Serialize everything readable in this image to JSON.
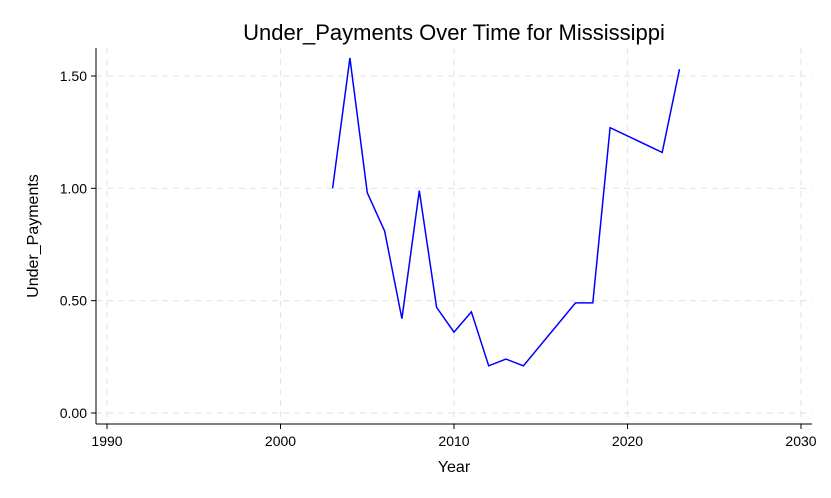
{
  "chart_data": {
    "type": "line",
    "title": "Under_Payments Over Time for Mississippi",
    "xlabel": "Year",
    "ylabel": "Under_Payments",
    "xlim": [
      1990,
      2030
    ],
    "ylim": [
      0,
      1.58
    ],
    "xticks": [
      1990,
      2000,
      2010,
      2020,
      2030
    ],
    "xtick_labels": [
      "1990",
      "2000",
      "2010",
      "2020",
      "2030"
    ],
    "yticks": [
      0,
      0.5,
      1.0,
      1.5
    ],
    "ytick_labels": [
      "0.00",
      "0.50",
      "1.00",
      "1.50"
    ],
    "grid": true,
    "color": "#0000ff",
    "series": [
      {
        "x": [
          2003,
          2004,
          2005,
          2006,
          2007,
          2008,
          2009,
          2010,
          2011,
          2012,
          2013,
          2014,
          2017,
          2018,
          2019,
          2022,
          2023
        ],
        "values": [
          1.0,
          1.58,
          0.98,
          0.81,
          0.42,
          0.99,
          0.47,
          0.36,
          0.45,
          0.21,
          0.24,
          0.21,
          0.49,
          0.49,
          1.27,
          1.16,
          1.53
        ]
      }
    ]
  }
}
